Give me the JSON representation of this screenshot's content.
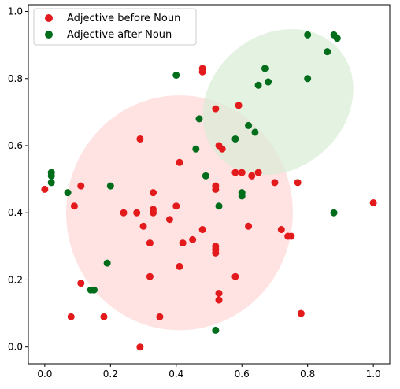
{
  "chart_data": {
    "type": "scatter",
    "title": "",
    "xlabel": "",
    "ylabel": "",
    "xlim": [
      -0.05,
      1.05
    ],
    "ylim": [
      -0.05,
      1.02
    ],
    "xticks": [
      "0.0",
      "0.2",
      "0.4",
      "0.6",
      "0.8",
      "1.0"
    ],
    "yticks": [
      "0.0",
      "0.2",
      "0.4",
      "0.6",
      "0.8",
      "1.0"
    ],
    "grid": false,
    "legend_position": "top-left",
    "series": [
      {
        "name": "Adjective before Noun",
        "color": "#e31a1c",
        "points": [
          [
            0.0,
            0.47
          ],
          [
            0.09,
            0.42
          ],
          [
            0.11,
            0.48
          ],
          [
            0.11,
            0.19
          ],
          [
            0.08,
            0.09
          ],
          [
            0.18,
            0.09
          ],
          [
            0.24,
            0.4
          ],
          [
            0.28,
            0.4
          ],
          [
            0.3,
            0.36
          ],
          [
            0.29,
            0.62
          ],
          [
            0.32,
            0.31
          ],
          [
            0.33,
            0.46
          ],
          [
            0.33,
            0.41
          ],
          [
            0.33,
            0.4
          ],
          [
            0.38,
            0.38
          ],
          [
            0.4,
            0.42
          ],
          [
            0.41,
            0.55
          ],
          [
            0.42,
            0.31
          ],
          [
            0.45,
            0.32
          ],
          [
            0.48,
            0.83
          ],
          [
            0.48,
            0.82
          ],
          [
            0.48,
            0.35
          ],
          [
            0.52,
            0.71
          ],
          [
            0.52,
            0.48
          ],
          [
            0.52,
            0.47
          ],
          [
            0.52,
            0.29
          ],
          [
            0.52,
            0.3
          ],
          [
            0.52,
            0.28
          ],
          [
            0.53,
            0.16
          ],
          [
            0.53,
            0.14
          ],
          [
            0.53,
            0.6
          ],
          [
            0.54,
            0.59
          ],
          [
            0.58,
            0.52
          ],
          [
            0.59,
            0.72
          ],
          [
            0.6,
            0.52
          ],
          [
            0.62,
            0.36
          ],
          [
            0.63,
            0.51
          ],
          [
            0.65,
            0.52
          ],
          [
            0.7,
            0.49
          ],
          [
            0.72,
            0.35
          ],
          [
            0.74,
            0.33
          ],
          [
            0.75,
            0.33
          ],
          [
            0.77,
            0.49
          ],
          [
            0.78,
            0.1
          ],
          [
            0.41,
            0.24
          ],
          [
            0.35,
            0.09
          ],
          [
            0.32,
            0.21
          ],
          [
            0.58,
            0.21
          ],
          [
            0.29,
            0.0
          ],
          [
            1.0,
            0.43
          ]
        ]
      },
      {
        "name": "Adjective after Noun",
        "color": "#006d1b",
        "points": [
          [
            0.02,
            0.52
          ],
          [
            0.02,
            0.51
          ],
          [
            0.02,
            0.49
          ],
          [
            0.07,
            0.46
          ],
          [
            0.14,
            0.17
          ],
          [
            0.15,
            0.17
          ],
          [
            0.19,
            0.25
          ],
          [
            0.2,
            0.48
          ],
          [
            0.4,
            0.81
          ],
          [
            0.46,
            0.59
          ],
          [
            0.47,
            0.68
          ],
          [
            0.49,
            0.51
          ],
          [
            0.53,
            0.42
          ],
          [
            0.52,
            0.05
          ],
          [
            0.58,
            0.62
          ],
          [
            0.6,
            0.45
          ],
          [
            0.6,
            0.46
          ],
          [
            0.62,
            0.66
          ],
          [
            0.64,
            0.64
          ],
          [
            0.65,
            0.78
          ],
          [
            0.67,
            0.83
          ],
          [
            0.68,
            0.79
          ],
          [
            0.8,
            0.93
          ],
          [
            0.8,
            0.8
          ],
          [
            0.86,
            0.88
          ],
          [
            0.88,
            0.93
          ],
          [
            0.89,
            0.92
          ],
          [
            0.88,
            0.4
          ]
        ]
      }
    ],
    "regions": [
      {
        "series": "Adjective before Noun",
        "fill": "#ffd6d6",
        "center": [
          0.41,
          0.4
        ],
        "rx": 0.345,
        "ry": 0.35
      },
      {
        "series": "Adjective after Noun",
        "fill": "#d9ecd6",
        "center": [
          0.71,
          0.73
        ],
        "rx": 0.245,
        "ry": 0.2,
        "rotation_deg": -40
      }
    ]
  }
}
